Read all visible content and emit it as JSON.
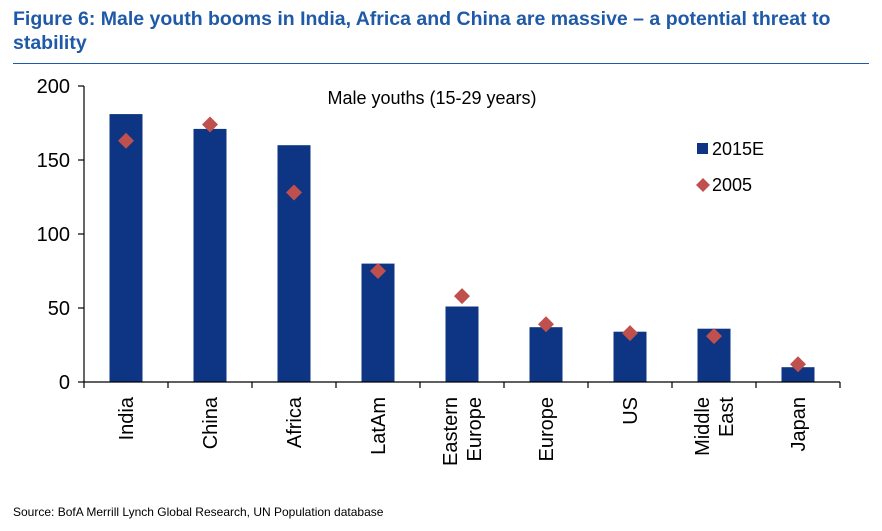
{
  "figure": {
    "title": "Figure 6: Male youth booms in India, Africa and China are massive – a potential threat to stability",
    "source": "Source: BofA Merrill Lynch Global Research, UN Population database"
  },
  "colors": {
    "title": "#1f5aa8",
    "bar_2015E": "#0d3584",
    "marker_2005": "#c0504d",
    "axis": "#000000"
  },
  "chart_data": {
    "type": "bar",
    "annotation": "Male youths (15-29 years)",
    "categories": [
      [
        "India"
      ],
      [
        "China"
      ],
      [
        "Africa"
      ],
      [
        "LatAm"
      ],
      [
        "Eastern",
        "Europe"
      ],
      [
        "Europe"
      ],
      [
        "US"
      ],
      [
        "Middle",
        "East"
      ],
      [
        "Japan"
      ]
    ],
    "series": [
      {
        "name": "2015E",
        "kind": "bar",
        "values": [
          181,
          171,
          160,
          80,
          51,
          37,
          34,
          36,
          10
        ]
      },
      {
        "name": "2005",
        "kind": "diamond",
        "values": [
          163,
          174,
          128,
          75,
          58,
          39,
          33,
          31,
          12
        ]
      }
    ],
    "ylim": [
      0,
      200
    ],
    "yticks": [
      0,
      50,
      100,
      150,
      200
    ],
    "grid": false,
    "legend_position": "right"
  }
}
